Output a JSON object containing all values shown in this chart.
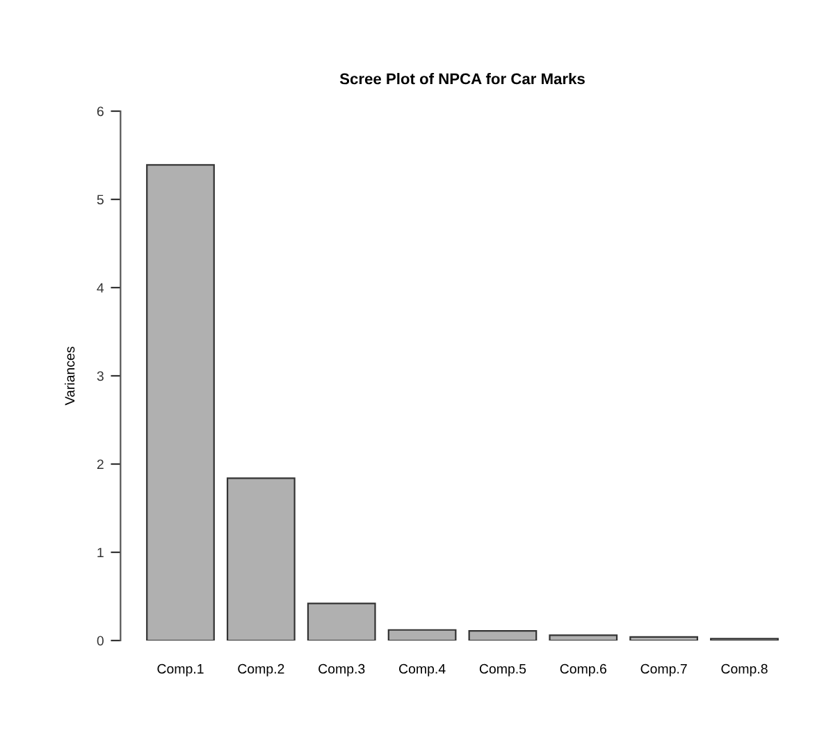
{
  "chart_data": {
    "type": "bar",
    "title": "Scree Plot of NPCA for Car Marks",
    "ylabel": "Variances",
    "categories": [
      "Comp.1",
      "Comp.2",
      "Comp.3",
      "Comp.4",
      "Comp.5",
      "Comp.6",
      "Comp.7",
      "Comp.8"
    ],
    "values": [
      5.39,
      1.84,
      0.42,
      0.12,
      0.11,
      0.06,
      0.04,
      0.02
    ],
    "color": "#b0b0b0",
    "ylim": [
      0,
      6
    ],
    "yticks": [
      0,
      1,
      2,
      3,
      4,
      5,
      6
    ],
    "grid": false
  }
}
